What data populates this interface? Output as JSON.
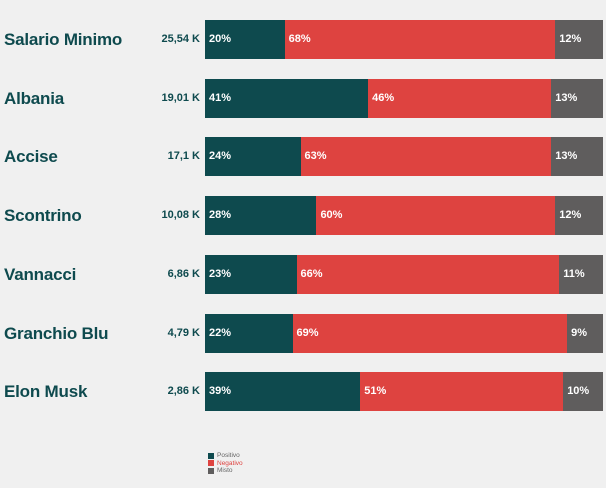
{
  "chart_data": {
    "type": "bar",
    "orientation": "horizontal",
    "stacked": true,
    "normalized": true,
    "categories": [
      "Salario Minimo",
      "Albania",
      "Accise",
      "Scontrino",
      "Vannacci",
      "Granchio Blu",
      "Elon Musk"
    ],
    "totals": [
      "25,54 K",
      "19,01 K",
      "17,1 K",
      "10,08 K",
      "6,86 K",
      "4,79 K",
      "2,86 K"
    ],
    "series": [
      {
        "name": "Positivo",
        "color": "#0e4a4e",
        "values": [
          20,
          41,
          24,
          28,
          23,
          22,
          39
        ]
      },
      {
        "name": "Negativo",
        "color": "#de4340",
        "values": [
          68,
          46,
          63,
          60,
          66,
          69,
          51
        ]
      },
      {
        "name": "Misto",
        "color": "#5f5d5d",
        "values": [
          12,
          13,
          13,
          12,
          11,
          9,
          10
        ]
      }
    ],
    "value_suffix": "%",
    "xlim": [
      0,
      100
    ],
    "grid": false,
    "legend_position": "bottom-center"
  }
}
